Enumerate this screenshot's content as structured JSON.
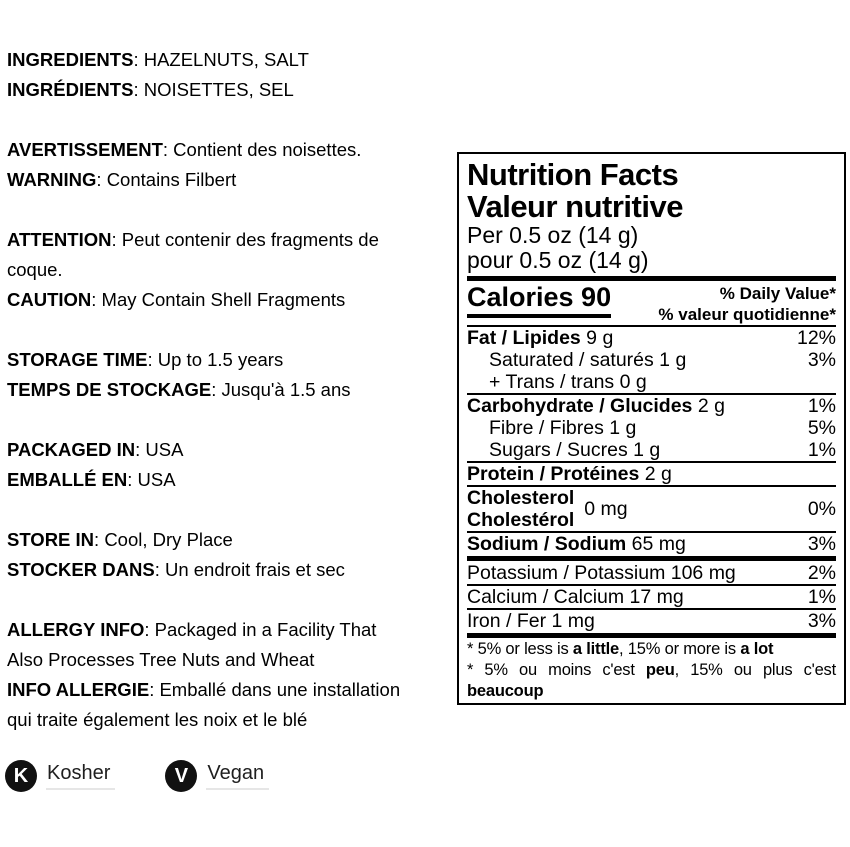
{
  "colors": {
    "text": "#000000",
    "background": "#ffffff",
    "badge_background": "#111111",
    "badge_label_underline": "#e6e6e6"
  },
  "left": {
    "groups": [
      {
        "lines": [
          {
            "label": "INGREDIENTS",
            "text": ": HAZELNUTS, SALT"
          },
          {
            "label": "INGRÉDIENTS",
            "text": ": NOISETTES, SEL"
          }
        ]
      },
      {
        "lines": [
          {
            "label": "AVERTISSEMENT",
            "text": ": Contient des noisettes."
          },
          {
            "label": "WARNING",
            "text": ": Contains Filbert"
          }
        ]
      },
      {
        "lines": [
          {
            "label": "ATTENTION",
            "text": ": Peut contenir des fragments de"
          },
          {
            "text": "coque."
          },
          {
            "label": "CAUTION",
            "text": ": May Contain Shell Fragments"
          }
        ]
      },
      {
        "lines": [
          {
            "label": "STORAGE TIME",
            "text": ": Up to 1.5 years"
          },
          {
            "label": "TEMPS DE STOCKAGE",
            "text": ": Jusqu'à 1.5 ans"
          }
        ]
      },
      {
        "lines": [
          {
            "label": "PACKAGED IN",
            "text": ": USA"
          },
          {
            "label": "EMBALLÉ EN",
            "text": ": USA"
          }
        ]
      },
      {
        "lines": [
          {
            "label": "STORE IN",
            "text": ": Cool, Dry Place"
          },
          {
            "label": "STOCKER DANS",
            "text": ": Un endroit frais et sec"
          }
        ]
      },
      {
        "lines": [
          {
            "label": "ALLERGY INFO",
            "text": ": Packaged in a Facility That"
          },
          {
            "text": "Also Processes Tree Nuts and Wheat"
          },
          {
            "label": "INFO ALLERGIE",
            "text": ": Emballé dans une installation"
          },
          {
            "text": "qui traite également les noix et le blé"
          }
        ]
      }
    ]
  },
  "badges": {
    "kosher": {
      "letter": "K",
      "label": "Kosher"
    },
    "vegan": {
      "letter": "V",
      "label": "Vegan"
    }
  },
  "nutrition_panel": {
    "title_en": "Nutrition Facts",
    "title_fr": "Valeur nutritive",
    "serving_en": "Per 0.5 oz (14 g)",
    "serving_fr": "pour 0.5 oz (14 g)",
    "calories": "Calories 90",
    "dv_header_en": "% Daily Value*",
    "dv_header_fr": "% valeur quotidienne*",
    "rows": {
      "fat": {
        "bold": "Fat / Lipides",
        "rest": " 9 g",
        "dv": "12%"
      },
      "saturated": {
        "text": "Saturated / saturés 1 g",
        "dv": "3%"
      },
      "trans": {
        "text": "+ Trans / trans 0 g",
        "dv": ""
      },
      "carbohydrate": {
        "bold": "Carbohydrate / Glucides",
        "rest": " 2 g",
        "dv": "1%"
      },
      "fibre": {
        "text": "Fibre / Fibres 1 g",
        "dv": "5%"
      },
      "sugars": {
        "text": "Sugars / Sucres 1 g",
        "dv": "1%"
      },
      "protein": {
        "bold": "Protein / Protéines",
        "rest": " 2 g",
        "dv": ""
      },
      "cholesterol": {
        "bold_en": "Cholesterol",
        "bold_fr": "Cholestérol",
        "amount": "0 mg",
        "dv": "0%"
      },
      "sodium": {
        "bold": "Sodium / Sodium",
        "rest": " 65 mg",
        "dv": "3%"
      },
      "potassium": {
        "text": "Potassium / Potassium 106 mg",
        "dv": "2%"
      },
      "calcium": {
        "text": "Calcium / Calcium 17 mg",
        "dv": "1%"
      },
      "iron": {
        "text": "Iron / Fer 1 mg",
        "dv": "3%"
      }
    },
    "footnote_en": {
      "p1": "* 5% or less is ",
      "b1": "a little",
      "p2": ", 15% or more is ",
      "b2": "a lot"
    },
    "footnote_fr": {
      "p1": "* 5% ou moins c'est ",
      "b1": "peu",
      "p2": ", 15% ou plus c'est ",
      "b2": "beaucoup"
    }
  }
}
